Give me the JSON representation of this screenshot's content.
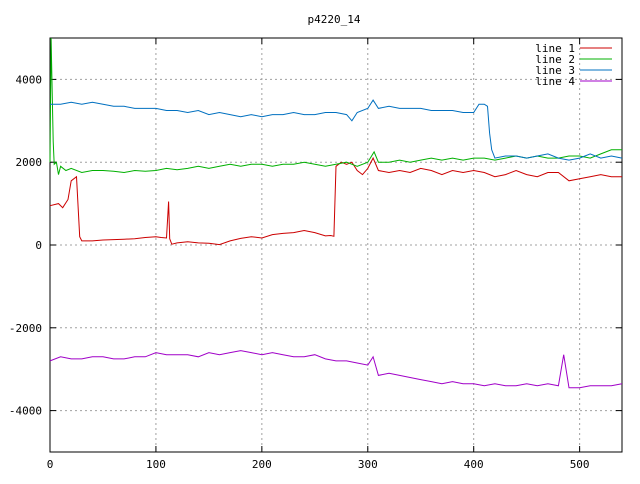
{
  "chart_data": {
    "type": "line",
    "title": "p4220_14",
    "xlabel": "",
    "ylabel": "",
    "xlim": [
      0,
      540
    ],
    "ylim": [
      -5000,
      5000
    ],
    "x_ticks": [
      0,
      100,
      200,
      300,
      400,
      500
    ],
    "y_ticks": [
      -4000,
      -2000,
      0,
      2000,
      4000
    ],
    "grid": true,
    "legend_position": "top-right",
    "series": [
      {
        "name": "line 1",
        "color": "#cc0000",
        "x": [
          0,
          8,
          12,
          17,
          20,
          25,
          28,
          30,
          40,
          50,
          60,
          70,
          80,
          90,
          100,
          105,
          110,
          112,
          113,
          115,
          120,
          130,
          140,
          150,
          160,
          170,
          180,
          190,
          200,
          210,
          220,
          230,
          240,
          250,
          260,
          265,
          268,
          270,
          275,
          280,
          285,
          290,
          295,
          300,
          305,
          310,
          320,
          330,
          340,
          350,
          360,
          370,
          380,
          390,
          400,
          410,
          420,
          430,
          440,
          450,
          460,
          470,
          480,
          490,
          500,
          510,
          520,
          530,
          540
        ],
        "y": [
          950,
          1000,
          900,
          1100,
          1550,
          1650,
          200,
          100,
          100,
          120,
          130,
          140,
          150,
          180,
          200,
          180,
          170,
          1050,
          150,
          20,
          50,
          80,
          50,
          40,
          10,
          100,
          160,
          200,
          170,
          250,
          280,
          300,
          350,
          300,
          220,
          230,
          210,
          1900,
          2000,
          1950,
          2000,
          1800,
          1700,
          1850,
          2100,
          1800,
          1750,
          1800,
          1750,
          1850,
          1800,
          1700,
          1800,
          1750,
          1800,
          1750,
          1650,
          1700,
          1800,
          1700,
          1650,
          1750,
          1750,
          1550,
          1600,
          1650,
          1700,
          1650,
          1650
        ]
      },
      {
        "name": "line 2",
        "color": "#00b000",
        "x": [
          0,
          1,
          2,
          3,
          4,
          6,
          8,
          10,
          15,
          20,
          30,
          40,
          50,
          60,
          70,
          80,
          90,
          100,
          110,
          120,
          130,
          140,
          150,
          160,
          170,
          180,
          190,
          200,
          210,
          220,
          230,
          240,
          250,
          260,
          270,
          280,
          290,
          300,
          306,
          310,
          320,
          330,
          340,
          350,
          360,
          370,
          380,
          390,
          400,
          410,
          420,
          430,
          440,
          450,
          460,
          470,
          480,
          490,
          500,
          510,
          520,
          530,
          540
        ],
        "y": [
          2000,
          5000,
          3800,
          2500,
          1950,
          2000,
          1700,
          1900,
          1800,
          1850,
          1750,
          1800,
          1800,
          1780,
          1750,
          1800,
          1780,
          1800,
          1850,
          1820,
          1850,
          1900,
          1850,
          1900,
          1950,
          1900,
          1950,
          1950,
          1900,
          1950,
          1950,
          2000,
          1950,
          1900,
          1950,
          2000,
          1900,
          2000,
          2250,
          2000,
          2000,
          2050,
          2000,
          2050,
          2100,
          2050,
          2100,
          2050,
          2100,
          2100,
          2050,
          2100,
          2150,
          2100,
          2150,
          2100,
          2100,
          2150,
          2150,
          2100,
          2200,
          2300,
          2300
        ]
      },
      {
        "name": "line 3",
        "color": "#0070c0",
        "x": [
          0,
          10,
          20,
          30,
          40,
          50,
          60,
          70,
          80,
          90,
          100,
          110,
          120,
          130,
          140,
          150,
          160,
          170,
          180,
          190,
          200,
          210,
          220,
          230,
          240,
          250,
          260,
          270,
          280,
          285,
          290,
          300,
          305,
          310,
          320,
          330,
          340,
          350,
          360,
          370,
          380,
          390,
          400,
          405,
          410,
          413,
          415,
          417,
          420,
          430,
          440,
          450,
          460,
          470,
          480,
          490,
          500,
          510,
          520,
          530,
          540
        ],
        "y": [
          3400,
          3400,
          3450,
          3400,
          3450,
          3400,
          3350,
          3350,
          3300,
          3300,
          3300,
          3250,
          3250,
          3200,
          3250,
          3150,
          3200,
          3150,
          3100,
          3150,
          3100,
          3150,
          3150,
          3200,
          3150,
          3150,
          3200,
          3200,
          3150,
          3000,
          3200,
          3300,
          3500,
          3300,
          3350,
          3300,
          3300,
          3300,
          3250,
          3250,
          3250,
          3200,
          3200,
          3400,
          3400,
          3350,
          2700,
          2300,
          2100,
          2150,
          2150,
          2100,
          2150,
          2200,
          2100,
          2050,
          2100,
          2200,
          2100,
          2150,
          2100
        ]
      },
      {
        "name": "line 4",
        "color": "#a000c8",
        "x": [
          0,
          10,
          20,
          30,
          40,
          50,
          60,
          70,
          80,
          90,
          100,
          110,
          120,
          130,
          140,
          150,
          160,
          170,
          180,
          190,
          200,
          210,
          220,
          230,
          240,
          250,
          260,
          270,
          280,
          290,
          300,
          305,
          310,
          320,
          330,
          340,
          350,
          360,
          370,
          380,
          390,
          400,
          410,
          420,
          430,
          440,
          450,
          460,
          470,
          480,
          485,
          490,
          500,
          510,
          520,
          530,
          540
        ],
        "y": [
          -2800,
          -2700,
          -2750,
          -2750,
          -2700,
          -2700,
          -2750,
          -2750,
          -2700,
          -2700,
          -2600,
          -2650,
          -2650,
          -2650,
          -2700,
          -2600,
          -2650,
          -2600,
          -2550,
          -2600,
          -2650,
          -2600,
          -2650,
          -2700,
          -2700,
          -2650,
          -2750,
          -2800,
          -2800,
          -2850,
          -2900,
          -2700,
          -3150,
          -3100,
          -3150,
          -3200,
          -3250,
          -3300,
          -3350,
          -3300,
          -3350,
          -3350,
          -3400,
          -3350,
          -3400,
          -3400,
          -3350,
          -3400,
          -3350,
          -3400,
          -2650,
          -3450,
          -3450,
          -3400,
          -3400,
          -3400,
          -3350
        ]
      }
    ]
  }
}
